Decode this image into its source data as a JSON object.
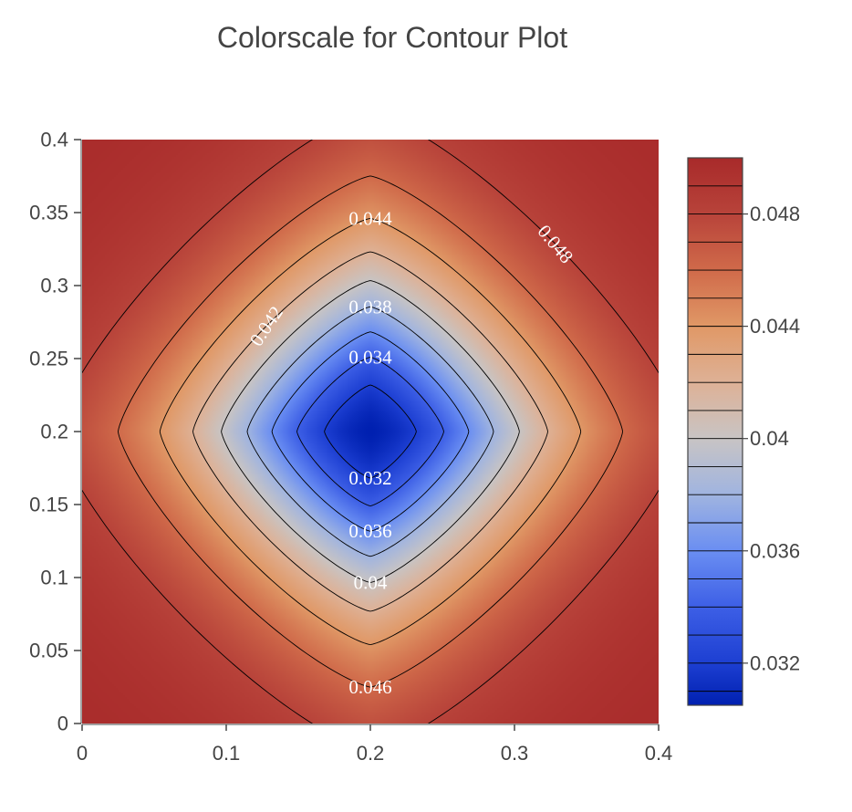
{
  "chart_data": {
    "type": "contour",
    "title": "Colorscale for Contour Plot",
    "xlabel": "",
    "ylabel": "",
    "xlim": [
      0,
      0.4
    ],
    "ylim": [
      0,
      0.4
    ],
    "x_ticks": [
      0,
      0.1,
      0.2,
      0.3,
      0.4
    ],
    "x_tick_labels": [
      "0",
      "0.1",
      "0.2",
      "0.3",
      "0.4"
    ],
    "y_ticks": [
      0,
      0.05,
      0.1,
      0.15,
      0.2,
      0.25,
      0.3,
      0.35,
      0.4
    ],
    "y_tick_labels": [
      "0",
      "0.05",
      "0.1",
      "0.15",
      "0.2",
      "0.25",
      "0.3",
      "0.35",
      "0.4"
    ],
    "z_center": [
      0.2,
      0.2
    ],
    "z_min": 0.03,
    "z_max": 0.05,
    "contour_levels": [
      0.031,
      0.032,
      0.033,
      0.034,
      0.035,
      0.036,
      0.037,
      0.038,
      0.039,
      0.04,
      0.041,
      0.042,
      0.043,
      0.044,
      0.045,
      0.046,
      0.047,
      0.048,
      0.049
    ],
    "drawn_levels": [
      0.032,
      0.034,
      0.036,
      0.038,
      0.04,
      0.042,
      0.044,
      0.046,
      0.048
    ],
    "contour_labels": [
      {
        "text": "0.032",
        "level": 0.032,
        "side": "bottom"
      },
      {
        "text": "0.034",
        "level": 0.034,
        "side": "top"
      },
      {
        "text": "0.036",
        "level": 0.036,
        "side": "bottom"
      },
      {
        "text": "0.038",
        "level": 0.038,
        "side": "top"
      },
      {
        "text": "0.04",
        "level": 0.04,
        "side": "bottom"
      },
      {
        "text": "0.042",
        "level": 0.042,
        "side": "upper-left"
      },
      {
        "text": "0.044",
        "level": 0.044,
        "side": "top"
      },
      {
        "text": "0.046",
        "level": 0.046,
        "side": "bottom"
      },
      {
        "text": "0.048",
        "level": 0.048,
        "side": "upper-right"
      }
    ],
    "colorscale": [
      {
        "value": 0.03,
        "color": "#0020b0"
      },
      {
        "value": 0.032,
        "color": "#1d3fd2"
      },
      {
        "value": 0.034,
        "color": "#3d5fe6"
      },
      {
        "value": 0.036,
        "color": "#6a8ef2"
      },
      {
        "value": 0.038,
        "color": "#a0b4e0"
      },
      {
        "value": 0.04,
        "color": "#c8c4c4"
      },
      {
        "value": 0.042,
        "color": "#deb196"
      },
      {
        "value": 0.044,
        "color": "#e09866"
      },
      {
        "value": 0.046,
        "color": "#d06a4a"
      },
      {
        "value": 0.048,
        "color": "#b8433a"
      },
      {
        "value": 0.05,
        "color": "#a82a2a"
      }
    ],
    "colorbar": {
      "ticks": [
        0.032,
        0.036,
        0.04,
        0.044,
        0.048
      ],
      "tick_labels": [
        "0.032",
        "0.036",
        "0.04",
        "0.044",
        "0.048"
      ],
      "range": [
        0.0305,
        0.05
      ]
    },
    "grid": false,
    "legend": "colorbar-right"
  }
}
